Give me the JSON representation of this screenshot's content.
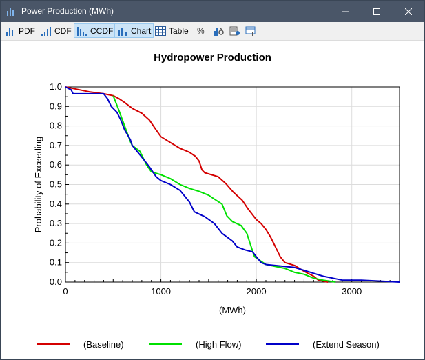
{
  "window": {
    "title": "Power Production (MWh)"
  },
  "toolbar": {
    "pdf": "PDF",
    "cdf": "CDF",
    "ccdf": "CCDF",
    "chart": "Chart",
    "table": "Table",
    "percent": "%"
  },
  "colors": {
    "baseline": "#d40000",
    "highflow": "#00e000",
    "extend": "#0000c8"
  },
  "chart_data": {
    "type": "line",
    "title": "Hydropower Production",
    "xlabel": "(MWh)",
    "ylabel": "Probability of Exceeding",
    "xlim": [
      0,
      3500
    ],
    "ylim": [
      0,
      1
    ],
    "xticks": [
      "0",
      "1000",
      "2000",
      "3000"
    ],
    "yticks": [
      "0.0",
      "0.1",
      "0.2",
      "0.3",
      "0.4",
      "0.5",
      "0.6",
      "0.7",
      "0.8",
      "0.9",
      "1.0"
    ],
    "grid": true,
    "legend_position": "bottom",
    "series": [
      {
        "name": "(Baseline)",
        "color": "#d40000",
        "points": [
          [
            0,
            1.0
          ],
          [
            100,
            0.99
          ],
          [
            250,
            0.975
          ],
          [
            400,
            0.965
          ],
          [
            500,
            0.955
          ],
          [
            560,
            0.94
          ],
          [
            620,
            0.92
          ],
          [
            700,
            0.89
          ],
          [
            800,
            0.865
          ],
          [
            880,
            0.83
          ],
          [
            950,
            0.78
          ],
          [
            1000,
            0.745
          ],
          [
            1100,
            0.715
          ],
          [
            1200,
            0.685
          ],
          [
            1300,
            0.665
          ],
          [
            1360,
            0.645
          ],
          [
            1400,
            0.62
          ],
          [
            1430,
            0.575
          ],
          [
            1460,
            0.56
          ],
          [
            1600,
            0.54
          ],
          [
            1680,
            0.505
          ],
          [
            1760,
            0.46
          ],
          [
            1850,
            0.42
          ],
          [
            1920,
            0.37
          ],
          [
            2000,
            0.32
          ],
          [
            2050,
            0.3
          ],
          [
            2100,
            0.27
          ],
          [
            2150,
            0.23
          ],
          [
            2200,
            0.18
          ],
          [
            2250,
            0.13
          ],
          [
            2300,
            0.1
          ],
          [
            2400,
            0.085
          ],
          [
            2500,
            0.055
          ],
          [
            2600,
            0.03
          ],
          [
            2650,
            0.01
          ],
          [
            2750,
            0.0
          ]
        ]
      },
      {
        "name": "(High Flow)",
        "color": "#00e000",
        "points": [
          [
            500,
            0.955
          ],
          [
            560,
            0.88
          ],
          [
            620,
            0.8
          ],
          [
            680,
            0.72
          ],
          [
            700,
            0.7
          ],
          [
            780,
            0.67
          ],
          [
            850,
            0.6
          ],
          [
            900,
            0.565
          ],
          [
            1000,
            0.55
          ],
          [
            1100,
            0.53
          ],
          [
            1200,
            0.5
          ],
          [
            1300,
            0.48
          ],
          [
            1400,
            0.465
          ],
          [
            1500,
            0.445
          ],
          [
            1560,
            0.425
          ],
          [
            1640,
            0.4
          ],
          [
            1690,
            0.34
          ],
          [
            1750,
            0.31
          ],
          [
            1840,
            0.29
          ],
          [
            1900,
            0.25
          ],
          [
            1940,
            0.19
          ],
          [
            1980,
            0.13
          ],
          [
            2100,
            0.09
          ],
          [
            2200,
            0.08
          ],
          [
            2300,
            0.07
          ],
          [
            2400,
            0.05
          ],
          [
            2500,
            0.04
          ],
          [
            2600,
            0.02
          ],
          [
            2700,
            0.01
          ],
          [
            2830,
            0.0
          ]
        ]
      },
      {
        "name": "(Extend Season)",
        "color": "#0000c8",
        "points": [
          [
            0,
            1.0
          ],
          [
            60,
            0.985
          ],
          [
            80,
            0.965
          ],
          [
            400,
            0.965
          ],
          [
            440,
            0.94
          ],
          [
            480,
            0.9
          ],
          [
            540,
            0.87
          ],
          [
            580,
            0.83
          ],
          [
            620,
            0.78
          ],
          [
            680,
            0.73
          ],
          [
            700,
            0.7
          ],
          [
            800,
            0.64
          ],
          [
            880,
            0.59
          ],
          [
            950,
            0.54
          ],
          [
            1000,
            0.52
          ],
          [
            1100,
            0.5
          ],
          [
            1200,
            0.47
          ],
          [
            1300,
            0.41
          ],
          [
            1350,
            0.36
          ],
          [
            1460,
            0.335
          ],
          [
            1560,
            0.3
          ],
          [
            1640,
            0.25
          ],
          [
            1750,
            0.21
          ],
          [
            1800,
            0.18
          ],
          [
            1880,
            0.165
          ],
          [
            1960,
            0.155
          ],
          [
            2000,
            0.13
          ],
          [
            2050,
            0.1
          ],
          [
            2100,
            0.09
          ],
          [
            2300,
            0.08
          ],
          [
            2400,
            0.075
          ],
          [
            2500,
            0.06
          ],
          [
            2600,
            0.045
          ],
          [
            2700,
            0.03
          ],
          [
            2800,
            0.02
          ],
          [
            2900,
            0.01
          ],
          [
            3100,
            0.01
          ],
          [
            3300,
            0.005
          ],
          [
            3500,
            0.0
          ]
        ]
      }
    ]
  }
}
